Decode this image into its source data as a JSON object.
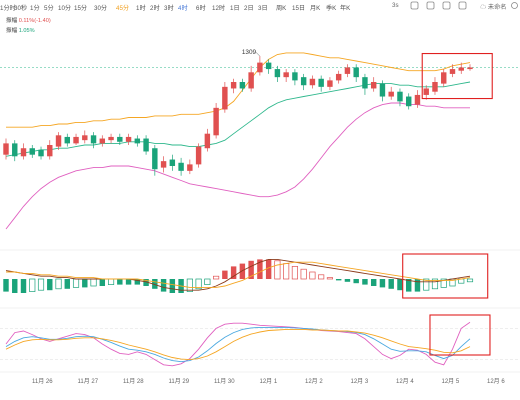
{
  "toolbar": {
    "timeframes": [
      "1分时",
      "30秒",
      "1分",
      "5分",
      "10分",
      "15分",
      "30分",
      "45分",
      "1时",
      "2时",
      "3时",
      "4时",
      "6时",
      "12时",
      "1日",
      "2日",
      "3日",
      "周K",
      "15日",
      "月K",
      "季K",
      "年K"
    ],
    "active_timeframe": "45分",
    "selected_timeframe": "4时",
    "right_items": [
      "3s",
      "未命名"
    ],
    "icons": [
      "flag-icon",
      "copy-icon",
      "sync-icon",
      "cloud-icon",
      "camera-icon",
      "settings-icon"
    ]
  },
  "indicators": {
    "line1_label": "振幅",
    "line1_value": "0.11%(-1.40)",
    "line2_label": "振幅",
    "line2_value": "1.05%"
  },
  "colors": {
    "up": "#e05050",
    "down": "#1aa37a",
    "boll_upper": "#f5a623",
    "boll_mid": "#2fb88d",
    "boll_lower": "#e060c0",
    "highlight_box": "#e02020",
    "macd_line": "#8b3a1a",
    "signal_line": "#f5a623"
  },
  "chart_data": {
    "type": "candlestick",
    "x_labels": [
      "11月 26",
      "11月 27",
      "11月 28",
      "11月 29",
      "11月 30",
      "12月 1",
      "12月 2",
      "12月 3",
      "12月 4",
      "12月 5",
      "12月 6"
    ],
    "annotations": [
      {
        "text": "1309"
      }
    ],
    "candles": [
      {
        "dir": "up",
        "open": 59,
        "close": 66,
        "high": 69,
        "low": 56
      },
      {
        "dir": "down",
        "open": 66,
        "close": 58,
        "high": 68,
        "low": 55
      },
      {
        "dir": "up",
        "open": 58,
        "close": 63,
        "high": 66,
        "low": 56
      },
      {
        "dir": "down",
        "open": 63,
        "close": 59,
        "high": 65,
        "low": 57
      },
      {
        "dir": "down",
        "open": 62,
        "close": 58,
        "high": 64,
        "low": 56
      },
      {
        "dir": "up",
        "open": 58,
        "close": 65,
        "high": 68,
        "low": 56
      },
      {
        "dir": "up",
        "open": 64,
        "close": 71,
        "high": 73,
        "low": 62
      },
      {
        "dir": "down",
        "open": 70,
        "close": 66,
        "high": 72,
        "low": 64
      },
      {
        "dir": "up",
        "open": 66,
        "close": 70,
        "high": 72,
        "low": 65
      },
      {
        "dir": "up",
        "open": 68,
        "close": 71,
        "high": 74,
        "low": 66
      },
      {
        "dir": "down",
        "open": 71,
        "close": 66,
        "high": 73,
        "low": 63
      },
      {
        "dir": "up",
        "open": 66,
        "close": 69,
        "high": 71,
        "low": 64
      },
      {
        "dir": "up",
        "open": 68,
        "close": 70,
        "high": 72,
        "low": 66
      },
      {
        "dir": "down",
        "open": 70,
        "close": 67,
        "high": 72,
        "low": 65
      },
      {
        "dir": "up",
        "open": 67,
        "close": 70,
        "high": 72,
        "low": 65
      },
      {
        "dir": "down",
        "open": 69,
        "close": 66,
        "high": 71,
        "low": 64
      },
      {
        "dir": "down",
        "open": 69,
        "close": 61,
        "high": 71,
        "low": 59
      },
      {
        "dir": "down",
        "open": 63,
        "close": 50,
        "high": 65,
        "low": 46
      },
      {
        "dir": "up",
        "open": 51,
        "close": 55,
        "high": 58,
        "low": 48
      },
      {
        "dir": "down",
        "open": 56,
        "close": 52,
        "high": 59,
        "low": 49
      },
      {
        "dir": "down",
        "open": 54,
        "close": 49,
        "high": 57,
        "low": 46
      },
      {
        "dir": "up",
        "open": 49,
        "close": 53,
        "high": 56,
        "low": 47
      },
      {
        "dir": "up",
        "open": 53,
        "close": 64,
        "high": 66,
        "low": 51
      },
      {
        "dir": "up",
        "open": 63,
        "close": 72,
        "high": 75,
        "low": 61
      },
      {
        "dir": "up",
        "open": 71,
        "close": 88,
        "high": 91,
        "low": 69
      },
      {
        "dir": "up",
        "open": 87,
        "close": 101,
        "high": 104,
        "low": 85
      },
      {
        "dir": "up",
        "open": 100,
        "close": 104,
        "high": 106,
        "low": 97
      },
      {
        "dir": "down",
        "open": 104,
        "close": 100,
        "high": 106,
        "low": 98
      },
      {
        "dir": "up",
        "open": 100,
        "close": 110,
        "high": 114,
        "low": 98
      },
      {
        "dir": "up",
        "open": 110,
        "close": 116,
        "high": 120,
        "low": 108
      },
      {
        "dir": "down",
        "open": 116,
        "close": 112,
        "high": 118,
        "low": 109
      },
      {
        "dir": "down",
        "open": 112,
        "close": 107,
        "high": 114,
        "low": 104
      },
      {
        "dir": "up",
        "open": 107,
        "close": 110,
        "high": 112,
        "low": 104
      },
      {
        "dir": "down",
        "open": 110,
        "close": 105,
        "high": 112,
        "low": 102
      },
      {
        "dir": "down",
        "open": 107,
        "close": 102,
        "high": 109,
        "low": 99
      },
      {
        "dir": "up",
        "open": 102,
        "close": 106,
        "high": 108,
        "low": 100
      },
      {
        "dir": "down",
        "open": 106,
        "close": 101,
        "high": 108,
        "low": 98
      },
      {
        "dir": "up",
        "open": 101,
        "close": 105,
        "high": 107,
        "low": 99
      },
      {
        "dir": "up",
        "open": 105,
        "close": 109,
        "high": 111,
        "low": 103
      },
      {
        "dir": "up",
        "open": 109,
        "close": 113,
        "high": 115,
        "low": 107
      },
      {
        "dir": "down",
        "open": 113,
        "close": 107,
        "high": 115,
        "low": 104
      },
      {
        "dir": "down",
        "open": 107,
        "close": 100,
        "high": 109,
        "low": 96
      },
      {
        "dir": "up",
        "open": 100,
        "close": 104,
        "high": 107,
        "low": 98
      },
      {
        "dir": "down",
        "open": 103,
        "close": 95,
        "high": 105,
        "low": 92
      },
      {
        "dir": "up",
        "open": 95,
        "close": 98,
        "high": 101,
        "low": 93
      },
      {
        "dir": "down",
        "open": 98,
        "close": 92,
        "high": 100,
        "low": 89
      },
      {
        "dir": "down",
        "open": 95,
        "close": 89,
        "high": 97,
        "low": 87
      },
      {
        "dir": "up",
        "open": 90,
        "close": 96,
        "high": 99,
        "low": 88
      },
      {
        "dir": "up",
        "open": 96,
        "close": 100,
        "high": 102,
        "low": 93
      },
      {
        "dir": "up",
        "open": 98,
        "close": 104,
        "high": 107,
        "low": 96
      },
      {
        "dir": "up",
        "open": 103,
        "close": 110,
        "high": 112,
        "low": 101
      },
      {
        "dir": "up",
        "open": 109,
        "close": 112,
        "high": 115,
        "low": 107
      },
      {
        "dir": "up",
        "open": 111,
        "close": 113,
        "high": 116,
        "low": 109
      },
      {
        "dir": "up",
        "open": 112,
        "close": 113,
        "high": 115,
        "low": 111
      }
    ],
    "boll_upper": [
      76,
      76,
      76,
      76,
      77,
      77,
      78,
      78,
      79,
      79,
      80,
      80,
      81,
      81,
      82,
      82,
      82,
      83,
      83,
      83,
      84,
      84,
      84,
      85,
      86,
      88,
      92,
      99,
      106,
      113,
      118,
      121,
      122,
      122,
      122,
      121,
      120,
      119,
      119,
      118,
      117,
      116,
      115,
      114,
      113,
      112,
      111,
      111,
      111,
      111,
      112,
      114,
      115,
      116
    ],
    "boll_mid": [
      58,
      59,
      60,
      61,
      62,
      62,
      63,
      63,
      64,
      65,
      65,
      66,
      66,
      66,
      67,
      67,
      67,
      66,
      66,
      65,
      65,
      64,
      64,
      65,
      66,
      68,
      72,
      76,
      80,
      84,
      88,
      91,
      93,
      94,
      95,
      96,
      97,
      98,
      99,
      100,
      101,
      102,
      103,
      103,
      103,
      102,
      102,
      101,
      101,
      101,
      101,
      102,
      103,
      104
    ],
    "boll_lower": [
      13,
      20,
      27,
      33,
      38,
      42,
      45,
      47,
      49,
      50,
      51,
      51,
      52,
      52,
      52,
      51,
      50,
      49,
      47,
      45,
      43,
      41,
      40,
      39,
      38,
      37,
      36,
      35,
      34,
      33,
      33,
      34,
      36,
      39,
      44,
      50,
      57,
      64,
      70,
      76,
      81,
      85,
      88,
      90,
      91,
      91,
      90,
      90,
      89,
      89,
      88,
      88,
      88,
      88
    ],
    "macd_hist": [
      -9,
      -10,
      -10,
      -9,
      -8,
      -8,
      -7,
      -7,
      -6,
      -6,
      -5,
      -5,
      -4,
      -4,
      -4,
      -4,
      -5,
      -7,
      -9,
      -10,
      -10,
      -9,
      -7,
      -4,
      2,
      6,
      9,
      11,
      13,
      14,
      14,
      13,
      11,
      9,
      7,
      5,
      3,
      1,
      -1,
      -2,
      -3,
      -4,
      -5,
      -6,
      -7,
      -8,
      -9,
      -9,
      -8,
      -7,
      -6,
      -5,
      -3,
      -2
    ],
    "macd_line": [
      6,
      5,
      4,
      3,
      2,
      2,
      1,
      1,
      0,
      0,
      0,
      0,
      0,
      0,
      0,
      -1,
      -2,
      -4,
      -6,
      -7,
      -8,
      -8,
      -8,
      -7,
      -5,
      -2,
      2,
      6,
      9,
      12,
      14,
      14,
      13,
      12,
      11,
      10,
      9,
      8,
      7,
      6,
      5,
      4,
      3,
      2,
      1,
      0,
      -1,
      -2,
      -2,
      -2,
      -1,
      0,
      1,
      2
    ],
    "signal_line": [
      5,
      5,
      4,
      4,
      3,
      3,
      2,
      2,
      1,
      1,
      1,
      0,
      0,
      0,
      0,
      0,
      -1,
      -2,
      -3,
      -4,
      -5,
      -6,
      -6,
      -6,
      -6,
      -5,
      -3,
      -1,
      2,
      5,
      8,
      10,
      11,
      12,
      12,
      12,
      11,
      10,
      9,
      8,
      7,
      6,
      5,
      4,
      3,
      2,
      1,
      0,
      -1,
      -1,
      -1,
      -1,
      0,
      1
    ],
    "kdj_k": [
      50,
      72,
      75,
      68,
      60,
      55,
      60,
      65,
      70,
      68,
      62,
      50,
      40,
      32,
      30,
      35,
      30,
      20,
      10,
      8,
      12,
      22,
      40,
      62,
      80,
      88,
      90,
      90,
      88,
      86,
      85,
      84,
      83,
      82,
      80,
      78,
      76,
      75,
      74,
      72,
      70,
      60,
      45,
      30,
      22,
      28,
      40,
      38,
      30,
      15,
      10,
      40,
      80,
      92
    ],
    "kdj_d": [
      45,
      55,
      62,
      64,
      62,
      59,
      59,
      61,
      64,
      65,
      64,
      59,
      53,
      46,
      40,
      38,
      35,
      30,
      23,
      18,
      16,
      18,
      25,
      37,
      51,
      63,
      72,
      78,
      81,
      82,
      82,
      82,
      82,
      81,
      80,
      79,
      77,
      76,
      75,
      74,
      72,
      68,
      60,
      50,
      40,
      36,
      37,
      37,
      35,
      28,
      22,
      28,
      45,
      60
    ],
    "kdj_j": [
      40,
      48,
      55,
      58,
      59,
      58,
      58,
      59,
      61,
      62,
      62,
      60,
      57,
      53,
      48,
      44,
      40,
      35,
      29,
      24,
      21,
      20,
      22,
      27,
      35,
      45,
      55,
      63,
      69,
      73,
      76,
      77,
      78,
      78,
      78,
      77,
      77,
      76,
      75,
      75,
      73,
      71,
      67,
      62,
      56,
      50,
      45,
      43,
      41,
      38,
      34,
      33,
      37,
      45
    ],
    "highlight_boxes": 3
  }
}
